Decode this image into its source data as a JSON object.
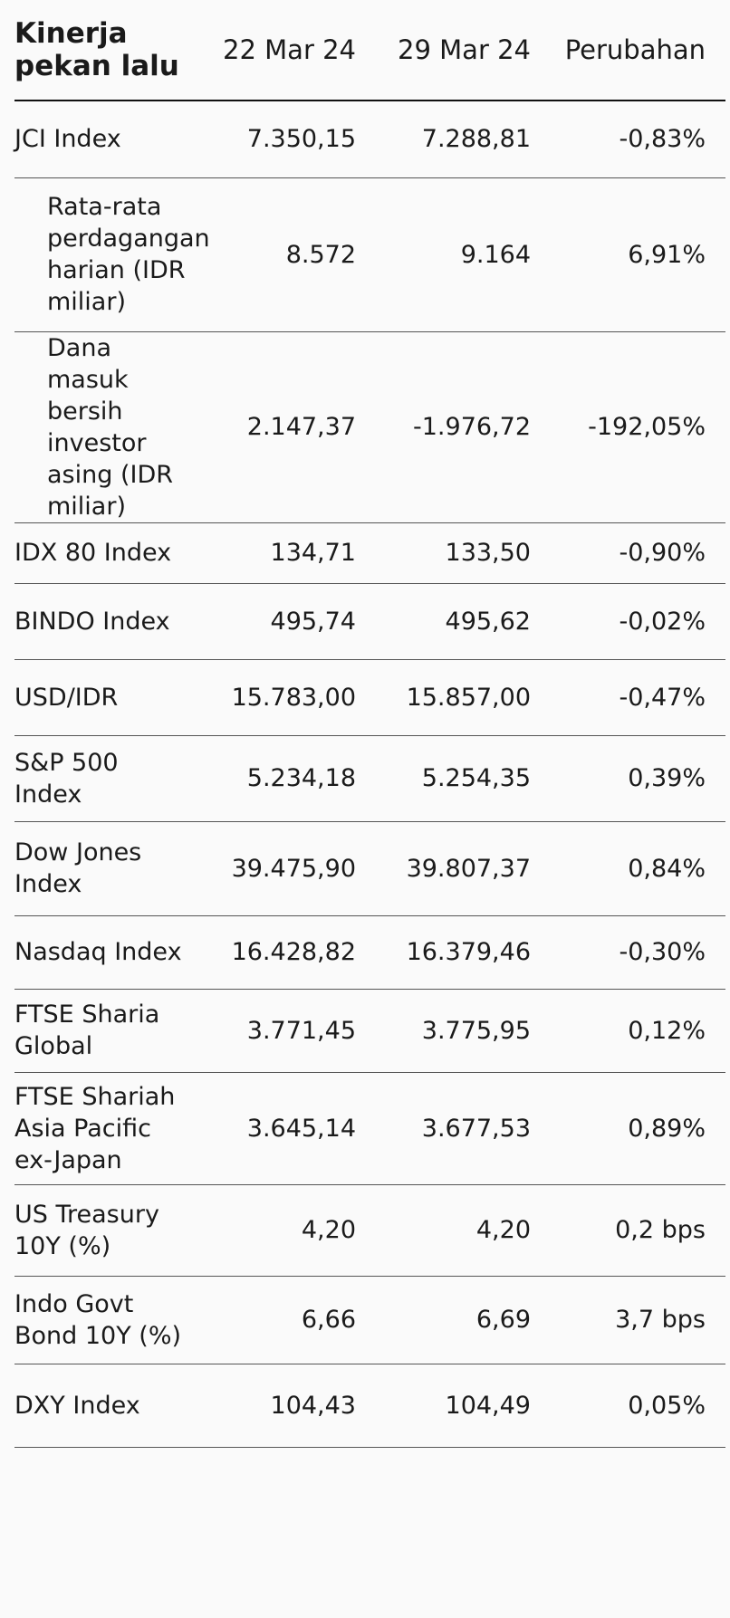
{
  "table": {
    "headers": {
      "title": "Kinerja pekan lalu",
      "date1": "22 Mar 24",
      "date2": "29 Mar 24",
      "change": "Perubahan"
    },
    "rows": [
      {
        "label": "JCI Index",
        "v1": "7.350,15",
        "v2": "7.288,81",
        "change": "-0,83%"
      },
      {
        "label": "Rata-rata perdagangan harian (IDR miliar)",
        "v1": "8.572",
        "v2": "9.164",
        "change": "6,91%"
      },
      {
        "label": "Dana masuk bersih investor asing (IDR miliar)",
        "v1": "2.147,37",
        "v2": "-1.976,72",
        "change": "-192,05%"
      },
      {
        "label": "IDX 80 Index",
        "v1": "134,71",
        "v2": "133,50",
        "change": "-0,90%"
      },
      {
        "label": "BINDO Index",
        "v1": "495,74",
        "v2": "495,62",
        "change": "-0,02%"
      },
      {
        "label": "USD/IDR",
        "v1": "15.783,00",
        "v2": "15.857,00",
        "change": "-0,47%"
      },
      {
        "label": "S&P 500 Index",
        "v1": "5.234,18",
        "v2": "5.254,35",
        "change": "0,39%"
      },
      {
        "label": "Dow Jones Index",
        "v1": "39.475,90",
        "v2": "39.807,37",
        "change": "0,84%"
      },
      {
        "label": "Nasdaq Index",
        "v1": "16.428,82",
        "v2": "16.379,46",
        "change": "-0,30%"
      },
      {
        "label": "FTSE Sharia Global",
        "v1": "3.771,45",
        "v2": "3.775,95",
        "change": "0,12%"
      },
      {
        "label": "FTSE Shariah Asia Pacific ex-Japan",
        "v1": "3.645,14",
        "v2": "3.677,53",
        "change": "0,89%"
      },
      {
        "label": "US Treasury 10Y (%)",
        "v1": "4,20",
        "v2": "4,20",
        "change": "0,2 bps"
      },
      {
        "label": "Indo Govt Bond 10Y (%)",
        "v1": "6,66",
        "v2": "6,69",
        "change": "3,7 bps"
      },
      {
        "label": "DXY Index",
        "v1": "104,43",
        "v2": "104,49",
        "change": "0,05%"
      }
    ]
  }
}
